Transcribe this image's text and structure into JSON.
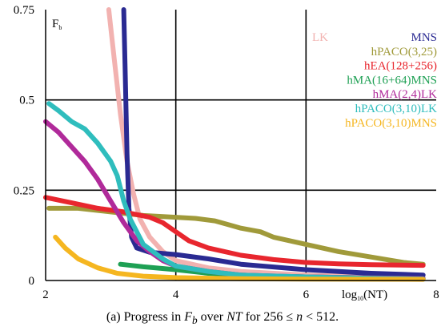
{
  "chart_data": {
    "type": "line",
    "x_scale": "log10",
    "xlim": [
      2,
      8
    ],
    "ylim": [
      0,
      0.75
    ],
    "x_ticks": [
      "2",
      "4",
      "6",
      "8"
    ],
    "y_ticks": [
      "0",
      "0.25",
      "0.5",
      "0.75"
    ],
    "grid": true,
    "legend_position": "top-right",
    "ylabel": {
      "main": "F",
      "sub": "b"
    },
    "xlabel": {
      "pre": "log",
      "sub": "10",
      "post": "(NT)"
    },
    "series": [
      {
        "name": "LK",
        "color": "#f2b2b0",
        "points": [
          [
            2.97,
            0.75
          ],
          [
            3.05,
            0.62
          ],
          [
            3.15,
            0.46
          ],
          [
            3.25,
            0.33
          ],
          [
            3.35,
            0.24
          ],
          [
            3.45,
            0.17
          ],
          [
            3.6,
            0.12
          ],
          [
            3.8,
            0.08
          ],
          [
            4.0,
            0.055
          ],
          [
            4.5,
            0.035
          ],
          [
            5.0,
            0.025
          ],
          [
            6.0,
            0.015
          ],
          [
            7.0,
            0.01
          ],
          [
            7.8,
            0.008
          ]
        ]
      },
      {
        "name": "MNS",
        "color": "#2a2a92",
        "points": [
          [
            3.2,
            0.75
          ],
          [
            3.22,
            0.6
          ],
          [
            3.25,
            0.35
          ],
          [
            3.28,
            0.2
          ],
          [
            3.32,
            0.12
          ],
          [
            3.4,
            0.09
          ],
          [
            3.6,
            0.078
          ],
          [
            3.8,
            0.075
          ],
          [
            4.0,
            0.072
          ],
          [
            4.5,
            0.06
          ],
          [
            5.0,
            0.045
          ],
          [
            6.0,
            0.03
          ],
          [
            7.0,
            0.02
          ],
          [
            7.8,
            0.015
          ]
        ]
      },
      {
        "name": "hPACO(3,25)",
        "color": "#a09a3a",
        "points": [
          [
            2.05,
            0.2
          ],
          [
            2.5,
            0.2
          ],
          [
            3.0,
            0.19
          ],
          [
            3.5,
            0.18
          ],
          [
            4.0,
            0.175
          ],
          [
            4.3,
            0.172
          ],
          [
            4.6,
            0.165
          ],
          [
            4.8,
            0.155
          ],
          [
            5.0,
            0.145
          ],
          [
            5.3,
            0.135
          ],
          [
            5.5,
            0.12
          ],
          [
            6.0,
            0.1
          ],
          [
            6.5,
            0.08
          ],
          [
            7.0,
            0.065
          ],
          [
            7.5,
            0.05
          ],
          [
            7.8,
            0.045
          ]
        ]
      },
      {
        "name": "hEA(128+256)",
        "color": "#e8262e",
        "points": [
          [
            2.0,
            0.23
          ],
          [
            2.4,
            0.215
          ],
          [
            2.8,
            0.2
          ],
          [
            3.2,
            0.19
          ],
          [
            3.6,
            0.175
          ],
          [
            3.8,
            0.16
          ],
          [
            4.0,
            0.135
          ],
          [
            4.2,
            0.11
          ],
          [
            4.5,
            0.09
          ],
          [
            5.0,
            0.07
          ],
          [
            5.5,
            0.058
          ],
          [
            6.0,
            0.05
          ],
          [
            6.5,
            0.046
          ],
          [
            7.0,
            0.044
          ],
          [
            7.8,
            0.042
          ]
        ]
      },
      {
        "name": "hMA(16+64)MNS",
        "color": "#1ea054",
        "points": [
          [
            3.15,
            0.045
          ],
          [
            3.5,
            0.038
          ],
          [
            4.0,
            0.03
          ],
          [
            4.5,
            0.02
          ],
          [
            5.0,
            0.015
          ],
          [
            5.5,
            0.012
          ],
          [
            6.0,
            0.01
          ],
          [
            7.0,
            0.007
          ],
          [
            7.8,
            0.005
          ]
        ]
      },
      {
        "name": "hMA(2,4)LK",
        "color": "#b02a9a",
        "points": [
          [
            2.0,
            0.44
          ],
          [
            2.2,
            0.41
          ],
          [
            2.4,
            0.37
          ],
          [
            2.6,
            0.33
          ],
          [
            2.8,
            0.28
          ],
          [
            3.0,
            0.22
          ],
          [
            3.2,
            0.16
          ],
          [
            3.4,
            0.11
          ],
          [
            3.6,
            0.08
          ],
          [
            3.8,
            0.055
          ],
          [
            4.0,
            0.04
          ],
          [
            4.5,
            0.025
          ],
          [
            5.0,
            0.015
          ],
          [
            6.0,
            0.01
          ],
          [
            7.0,
            0.007
          ],
          [
            7.8,
            0.005
          ]
        ]
      },
      {
        "name": "hPACO(3,10)LK",
        "color": "#2fbdbd",
        "points": [
          [
            2.05,
            0.49
          ],
          [
            2.2,
            0.47
          ],
          [
            2.4,
            0.44
          ],
          [
            2.6,
            0.42
          ],
          [
            2.8,
            0.38
          ],
          [
            3.0,
            0.33
          ],
          [
            3.1,
            0.29
          ],
          [
            3.2,
            0.22
          ],
          [
            3.3,
            0.17
          ],
          [
            3.5,
            0.1
          ],
          [
            3.8,
            0.06
          ],
          [
            4.0,
            0.04
          ],
          [
            4.5,
            0.025
          ],
          [
            5.0,
            0.015
          ],
          [
            6.0,
            0.01
          ],
          [
            7.0,
            0.006
          ],
          [
            7.8,
            0.004
          ]
        ]
      },
      {
        "name": "hPACO(3,10)MNS",
        "color": "#f5b620",
        "points": [
          [
            2.15,
            0.12
          ],
          [
            2.3,
            0.09
          ],
          [
            2.5,
            0.06
          ],
          [
            2.8,
            0.035
          ],
          [
            3.1,
            0.02
          ],
          [
            3.5,
            0.012
          ],
          [
            4.0,
            0.008
          ],
          [
            5.0,
            0.005
          ],
          [
            6.0,
            0.004
          ],
          [
            7.8,
            0.003
          ]
        ]
      }
    ]
  },
  "caption": {
    "prefix": "(a) Progress in ",
    "var_fb": "F",
    "var_fb_sub": "b",
    "mid": " over ",
    "var_nt": "NT",
    "post": " for 256 ≤ ",
    "var_n": "n",
    "end": " < 512."
  }
}
